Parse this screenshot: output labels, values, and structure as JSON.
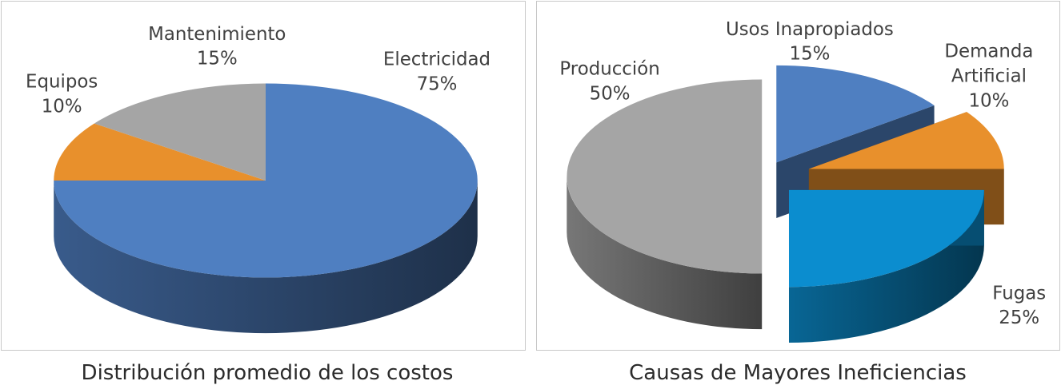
{
  "chart_data": [
    {
      "type": "pie",
      "style": "3d",
      "title": "Distribución promedio de los costos",
      "slices": [
        {
          "name": "Electricidad",
          "value": 75,
          "label": "75%",
          "color": "#4f7fc1"
        },
        {
          "name": "Equipos",
          "value": 10,
          "label": "10%",
          "color": "#e8902c"
        },
        {
          "name": "Mantenimiento",
          "value": 15,
          "label": "15%",
          "color": "#a5a5a5"
        }
      ]
    },
    {
      "type": "pie",
      "style": "3d-exploded",
      "title": "Causas de Mayores Ineficiencias",
      "slices": [
        {
          "name": "Usos Inapropiados",
          "value": 15,
          "label": "15%",
          "color": "#4f7fc1"
        },
        {
          "name": "Demanda Artificial",
          "value": 10,
          "label": "10%",
          "color": "#e8902c"
        },
        {
          "name": "Fugas",
          "value": 25,
          "label": "25%",
          "color": "#0b8dcf"
        },
        {
          "name": "Producción",
          "value": 50,
          "label": "50%",
          "color": "#a5a5a5"
        }
      ]
    }
  ]
}
